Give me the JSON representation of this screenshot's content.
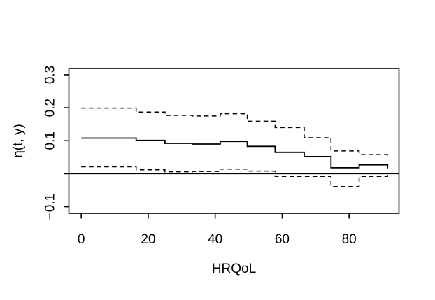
{
  "figure": {
    "background": "#ffffff",
    "line_color": "#000000"
  },
  "chart_data": {
    "type": "line",
    "subtype": "step-function-with-confidence-band",
    "title": "",
    "xlabel": "HRQoL",
    "ylabel": "η(t, y)",
    "xlim": [
      -3.7,
      94.9
    ],
    "ylim": [
      -0.12,
      0.319
    ],
    "x_ticks": [
      0,
      20,
      40,
      60,
      80
    ],
    "x_tick_labels": [
      "0",
      "20",
      "40",
      "60",
      "80"
    ],
    "y_ticks": [
      -0.1,
      0,
      0.1,
      0.2,
      0.3
    ],
    "y_tick_labels": [
      "−0.1",
      "",
      "0.1",
      "0.2",
      "0.3"
    ],
    "grid": "off",
    "legend": "none",
    "reference_line_y": 0,
    "knots_x": [
      0,
      16.4,
      25,
      33.2,
      41.5,
      49.6,
      57.9,
      66.6,
      74.6,
      83,
      91.5
    ],
    "series": [
      {
        "name": "estimate",
        "style": "solid",
        "values": [
          0.108,
          0.101,
          0.092,
          0.09,
          0.098,
          0.083,
          0.065,
          0.052,
          0.018,
          0.027
        ]
      },
      {
        "name": "upper-ci",
        "style": "dashed",
        "values": [
          0.199,
          0.187,
          0.177,
          0.175,
          0.182,
          0.159,
          0.14,
          0.109,
          0.069,
          0.058
        ]
      },
      {
        "name": "lower-ci",
        "style": "dashed",
        "values": [
          0.021,
          0.012,
          0.006,
          0.007,
          0.014,
          0.008,
          -0.008,
          -0.008,
          -0.039,
          -0.008
        ]
      }
    ]
  }
}
